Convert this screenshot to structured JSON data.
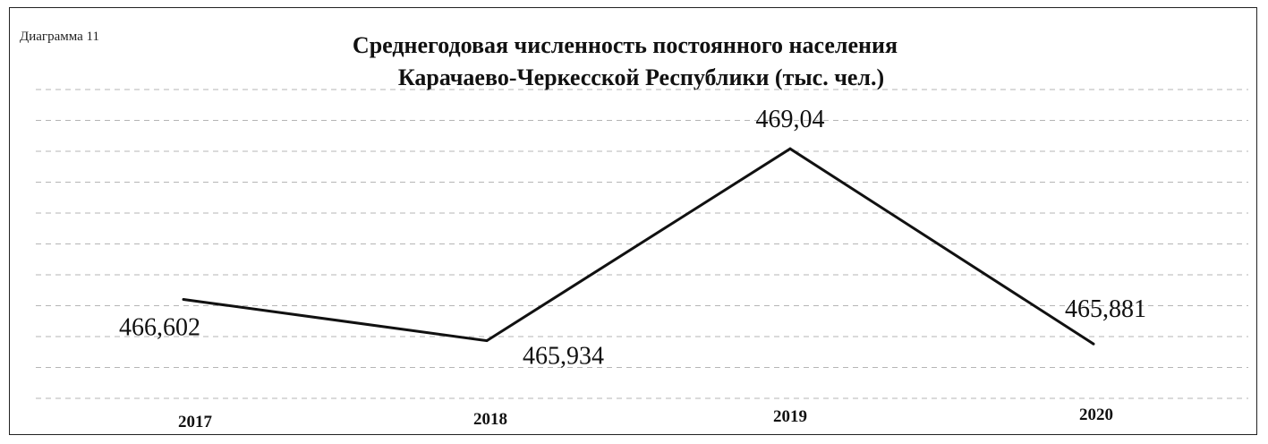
{
  "diagram_label": "Диаграмма 11",
  "chart_data": {
    "type": "line",
    "title": [
      "Среднегодовая численность постоянного населения",
      "Карачаево-Черкесской Республики (тыс. чел.)"
    ],
    "categories": [
      "2017",
      "2018",
      "2019",
      "2020"
    ],
    "series": [
      {
        "values": [
          466.602,
          465.934,
          469.04,
          465.881
        ],
        "labels": [
          "466,602",
          "465,934",
          "469,04",
          "465,881"
        ]
      }
    ],
    "ylim": [
      465.0,
      470.0
    ],
    "grid": true,
    "legend": "none",
    "line_color": "#111111"
  }
}
